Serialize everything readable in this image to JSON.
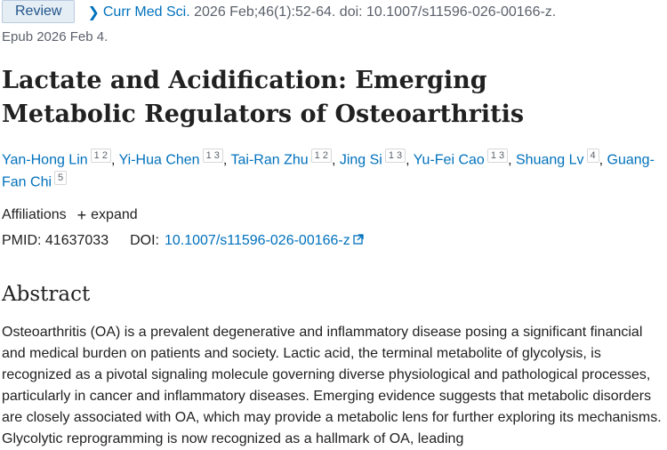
{
  "header": {
    "badge": "Review",
    "journal_link": "Curr Med Sci.",
    "citation": "2026 Feb;46(1):52-64. doi: 10.1007/s11596-026-00166-z.",
    "epub": "Epub 2026 Feb 4."
  },
  "article": {
    "title": "Lactate and Acidification: Emerging Metabolic Regulators of Osteoarthritis"
  },
  "authors": [
    {
      "name": "Yan-Hong Lin",
      "affs": [
        "1",
        "2"
      ]
    },
    {
      "name": "Yi-Hua Chen",
      "affs": [
        "1",
        "3"
      ]
    },
    {
      "name": "Tai-Ran Zhu",
      "affs": [
        "1",
        "2"
      ]
    },
    {
      "name": "Jing Si",
      "affs": [
        "1",
        "3"
      ]
    },
    {
      "name": "Yu-Fei Cao",
      "affs": [
        "1",
        "3"
      ]
    },
    {
      "name": "Shuang Lv",
      "affs": [
        "4"
      ]
    },
    {
      "name": "Guang-Fan Chi",
      "affs": [
        "5"
      ]
    }
  ],
  "affiliations": {
    "label": "Affiliations",
    "expand": "expand"
  },
  "ids": {
    "pmid_label": "PMID:",
    "pmid": "41637033",
    "doi_label": "DOI:",
    "doi": "10.1007/s11596-026-00166-z"
  },
  "abstract": {
    "heading": "Abstract",
    "text": "Osteoarthritis (OA) is a prevalent degenerative and inflammatory disease posing a significant financial and medical burden on patients and society. Lactic acid, the terminal metabolite of glycolysis, is recognized as a pivotal signaling molecule governing diverse physiological and pathological processes, particularly in cancer and inflammatory diseases. Emerging evidence suggests that metabolic disorders are closely associated with OA, which may provide a metabolic lens for further exploring its mechanisms. Glycolytic reprogramming is now recognized as a hallmark of OA, leading"
  },
  "icons": {
    "chevron": "chevron-right-icon",
    "plus": "plus-icon",
    "external": "external-link-icon"
  },
  "colors": {
    "link": "#0071bc",
    "text": "#212121",
    "muted": "#5b616b",
    "badge_bg": "#e6eef5"
  }
}
